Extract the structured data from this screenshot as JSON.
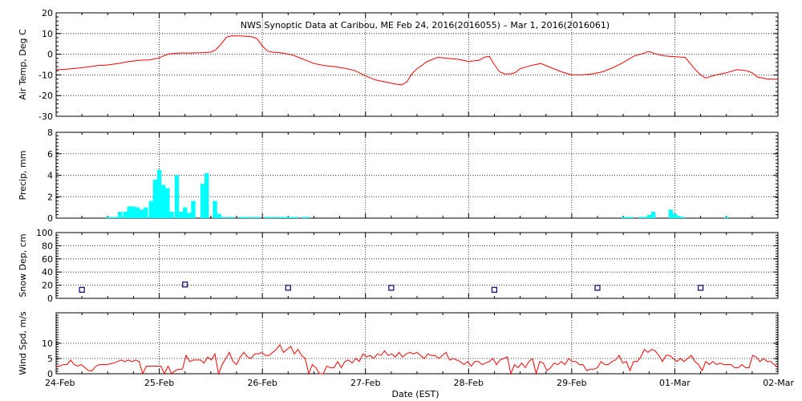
{
  "title": "NWS Synoptic Data at Caribou, ME   Feb 24, 2016(2016055) – Mar  1, 2016(2016061)",
  "x_axis": {
    "label": "Date (EST)",
    "tick_labels": [
      "24-Feb",
      "25-Feb",
      "26-Feb",
      "27-Feb",
      "28-Feb",
      "29-Feb",
      "01-Mar",
      "02-Mar"
    ]
  },
  "colors": {
    "air_temp": "#ff0000",
    "precip": "#00ffff",
    "snow_depth": "#000080",
    "wind_speed": "#ff0000",
    "grid": "#000000"
  },
  "chart_data": [
    {
      "type": "line",
      "name": "air_temp",
      "ylabel": "Air Temp, Deg C",
      "ylim": [
        -30,
        20
      ],
      "yticks": [
        -30,
        -20,
        -10,
        0,
        10,
        20
      ],
      "x_unit": "days since 24-Feb",
      "points": [
        [
          0,
          -7.5
        ],
        [
          0.1,
          -7.2
        ],
        [
          0.2,
          -6.8
        ],
        [
          0.3,
          -6.2
        ],
        [
          0.4,
          -5.5
        ],
        [
          0.5,
          -5.2
        ],
        [
          0.6,
          -4.5
        ],
        [
          0.7,
          -3.6
        ],
        [
          0.8,
          -3.0
        ],
        [
          0.9,
          -2.8
        ],
        [
          1.0,
          -1.8
        ],
        [
          1.05,
          -0.6
        ],
        [
          1.1,
          0.2
        ],
        [
          1.2,
          0.6
        ],
        [
          1.3,
          0.6
        ],
        [
          1.4,
          0.7
        ],
        [
          1.5,
          1.0
        ],
        [
          1.55,
          2.2
        ],
        [
          1.6,
          4.8
        ],
        [
          1.65,
          8.2
        ],
        [
          1.7,
          8.9
        ],
        [
          1.8,
          8.8
        ],
        [
          1.9,
          8.4
        ],
        [
          1.95,
          7.5
        ],
        [
          2.0,
          4.0
        ],
        [
          2.05,
          1.5
        ],
        [
          2.1,
          1.0
        ],
        [
          2.2,
          0.6
        ],
        [
          2.3,
          -0.5
        ],
        [
          2.4,
          -2.5
        ],
        [
          2.5,
          -4.5
        ],
        [
          2.6,
          -5.5
        ],
        [
          2.7,
          -6.0
        ],
        [
          2.8,
          -6.8
        ],
        [
          2.9,
          -8.0
        ],
        [
          3.0,
          -10.5
        ],
        [
          3.1,
          -12.5
        ],
        [
          3.2,
          -13.5
        ],
        [
          3.3,
          -14.5
        ],
        [
          3.35,
          -14.8
        ],
        [
          3.4,
          -13.5
        ],
        [
          3.45,
          -9.5
        ],
        [
          3.5,
          -7.0
        ],
        [
          3.6,
          -3.5
        ],
        [
          3.7,
          -1.5
        ],
        [
          3.8,
          -2.0
        ],
        [
          3.9,
          -2.5
        ],
        [
          4.0,
          -3.5
        ],
        [
          4.1,
          -3.0
        ],
        [
          4.15,
          -1.5
        ],
        [
          4.2,
          -1.0
        ],
        [
          4.25,
          -5.0
        ],
        [
          4.3,
          -8.5
        ],
        [
          4.35,
          -9.5
        ],
        [
          4.4,
          -9.5
        ],
        [
          4.45,
          -9.0
        ],
        [
          4.5,
          -7.0
        ],
        [
          4.6,
          -5.5
        ],
        [
          4.7,
          -4.5
        ],
        [
          4.8,
          -6.5
        ],
        [
          4.9,
          -8.5
        ],
        [
          5.0,
          -10.0
        ],
        [
          5.1,
          -10.0
        ],
        [
          5.2,
          -9.5
        ],
        [
          5.3,
          -8.5
        ],
        [
          5.4,
          -6.5
        ],
        [
          5.5,
          -4.0
        ],
        [
          5.6,
          -1.0
        ],
        [
          5.7,
          0.5
        ],
        [
          5.75,
          1.3
        ],
        [
          5.8,
          0.3
        ],
        [
          5.9,
          -0.8
        ],
        [
          6.0,
          -1.2
        ],
        [
          6.1,
          -1.5
        ],
        [
          6.15,
          -4.5
        ],
        [
          6.2,
          -7.5
        ],
        [
          6.25,
          -10.0
        ],
        [
          6.3,
          -11.5
        ],
        [
          6.4,
          -10.0
        ],
        [
          6.5,
          -9.0
        ],
        [
          6.6,
          -7.5
        ],
        [
          6.7,
          -8.0
        ],
        [
          6.75,
          -9.0
        ],
        [
          6.8,
          -11.0
        ],
        [
          6.9,
          -12.0
        ],
        [
          7.0,
          -12.0
        ]
      ]
    },
    {
      "type": "bar",
      "name": "precip",
      "ylabel": "Precip, mm",
      "ylim": [
        0,
        8
      ],
      "yticks": [
        0,
        2,
        4,
        6,
        8
      ],
      "bar_width_days": 0.042,
      "x": [
        0.5,
        0.54,
        0.58,
        0.62,
        0.67,
        0.71,
        0.75,
        0.79,
        0.83,
        0.87,
        0.92,
        0.96,
        1.0,
        1.04,
        1.08,
        1.12,
        1.17,
        1.21,
        1.25,
        1.29,
        1.33,
        1.42,
        1.46,
        1.54,
        1.58,
        1.62,
        1.67,
        1.71,
        1.79,
        1.83,
        1.87,
        1.92,
        1.96,
        2.04,
        2.08,
        2.12,
        2.17,
        2.21,
        2.25,
        2.29,
        2.33,
        2.4,
        2.44,
        5.5,
        5.54,
        5.58,
        5.67,
        5.71,
        5.75,
        5.79,
        5.96,
        6.0,
        6.04,
        6.08,
        6.5
      ],
      "values": [
        0.1,
        0.1,
        0.1,
        0.6,
        0.6,
        1.1,
        1.1,
        1.0,
        0.8,
        1.0,
        1.6,
        3.6,
        4.5,
        3.1,
        2.8,
        0.6,
        4.0,
        0.6,
        1.0,
        0.5,
        1.6,
        3.2,
        4.2,
        1.6,
        0.4,
        0.1,
        0.1,
        0.1,
        0.1,
        0.1,
        0.1,
        0.1,
        0.1,
        0.1,
        0.1,
        0.1,
        0.1,
        0.1,
        0.1,
        0.1,
        0.1,
        0.1,
        0.1,
        0.1,
        0.1,
        0.1,
        0.1,
        0.1,
        0.3,
        0.6,
        0.8,
        0.4,
        0.2,
        0.1,
        0.1
      ]
    },
    {
      "type": "scatter",
      "name": "snow_depth",
      "ylabel": "Snow Dep, cm",
      "ylim": [
        0,
        100
      ],
      "yticks": [
        0,
        20,
        40,
        60,
        80,
        100
      ],
      "x": [
        0.25,
        1.25,
        2.25,
        3.25,
        4.25,
        5.25,
        6.25
      ],
      "values": [
        13,
        21,
        16,
        16,
        13,
        16,
        16
      ]
    },
    {
      "type": "line",
      "name": "wind_speed",
      "ylabel": "Wind Spd, m/s",
      "ylim": [
        0,
        20
      ],
      "yticks": [
        0,
        5,
        10
      ],
      "x_unit": "days since 24-Feb",
      "points": [
        [
          0,
          2.5
        ],
        [
          0.05,
          2.5
        ],
        [
          0.1,
          3
        ],
        [
          0.15,
          3
        ],
        [
          0.2,
          4.5
        ],
        [
          0.25,
          3
        ],
        [
          0.3,
          2.5
        ],
        [
          0.35,
          3
        ],
        [
          0.4,
          2
        ],
        [
          0.45,
          1
        ],
        [
          0.5,
          1
        ],
        [
          0.55,
          2.5
        ],
        [
          0.6,
          3
        ],
        [
          0.7,
          3
        ],
        [
          0.8,
          3.5
        ],
        [
          0.9,
          4.5
        ],
        [
          0.95,
          4
        ],
        [
          1.0,
          4.5
        ],
        [
          1.05,
          4
        ],
        [
          1.1,
          4.5
        ],
        [
          1.15,
          4
        ],
        [
          1.2,
          0
        ],
        [
          1.25,
          2.5
        ],
        [
          1.3,
          2.5
        ],
        [
          1.35,
          2.5
        ],
        [
          1.4,
          2.5
        ],
        [
          1.45,
          2.5
        ],
        [
          1.5,
          0
        ],
        [
          1.55,
          2.5
        ],
        [
          1.6,
          0
        ],
        [
          1.65,
          1
        ],
        [
          1.7,
          1.5
        ],
        [
          1.75,
          1.5
        ],
        [
          1.8,
          6
        ],
        [
          1.85,
          4
        ],
        [
          1.9,
          4.5
        ],
        [
          2.0,
          4.5
        ],
        [
          2.05,
          3.5
        ],
        [
          2.1,
          5.5
        ],
        [
          2.15,
          4.5
        ],
        [
          2.2,
          6.5
        ],
        [
          2.25,
          0
        ],
        [
          2.3,
          3
        ],
        [
          2.35,
          5
        ],
        [
          2.4,
          7
        ],
        [
          2.45,
          4
        ],
        [
          2.5,
          3
        ],
        [
          2.55,
          5.5
        ],
        [
          2.6,
          7
        ],
        [
          2.65,
          5.5
        ],
        [
          2.7,
          5
        ],
        [
          2.75,
          6.5
        ],
        [
          2.8,
          6.5
        ],
        [
          2.85,
          7
        ],
        [
          2.9,
          6
        ],
        [
          2.95,
          6
        ],
        [
          3.0,
          7
        ],
        [
          3.05,
          8
        ],
        [
          3.1,
          9.5
        ],
        [
          3.15,
          7
        ],
        [
          3.2,
          8
        ],
        [
          3.25,
          9
        ],
        [
          3.3,
          6.5
        ],
        [
          3.35,
          8
        ],
        [
          3.4,
          6
        ],
        [
          3.45,
          5
        ],
        [
          3.5,
          0
        ],
        [
          3.55,
          3
        ],
        [
          3.6,
          2
        ],
        [
          3.65,
          0
        ],
        [
          3.7,
          0
        ],
        [
          3.75,
          2.5
        ],
        [
          3.8,
          2
        ],
        [
          3.85,
          2
        ],
        [
          3.9,
          4
        ],
        [
          3.95,
          2
        ],
        [
          4.0,
          4
        ],
        [
          4.05,
          4.5
        ],
        [
          4.1,
          3.5
        ],
        [
          4.15,
          5
        ],
        [
          4.2,
          4
        ],
        [
          4.25,
          6.5
        ],
        [
          4.3,
          5.5
        ],
        [
          4.35,
          6
        ],
        [
          4.4,
          5
        ],
        [
          4.45,
          6.5
        ],
        [
          4.5,
          6
        ],
        [
          4.55,
          7.5
        ],
        [
          4.6,
          6
        ],
        [
          4.65,
          6.5
        ],
        [
          4.7,
          5.5
        ],
        [
          4.75,
          7
        ],
        [
          4.8,
          5.5
        ],
        [
          4.85,
          6.5
        ],
        [
          4.9,
          7
        ],
        [
          4.95,
          6.5
        ],
        [
          5.0,
          7
        ],
        [
          5.05,
          6
        ],
        [
          5.1,
          5
        ],
        [
          5.15,
          6.5
        ],
        [
          5.2,
          6
        ],
        [
          5.25,
          6
        ],
        [
          5.3,
          5
        ],
        [
          5.35,
          6
        ],
        [
          5.4,
          7
        ],
        [
          5.45,
          4.5
        ],
        [
          5.5,
          5
        ],
        [
          5.55,
          4.5
        ],
        [
          5.6,
          4
        ],
        [
          5.65,
          3
        ],
        [
          5.7,
          4
        ],
        [
          5.75,
          2.5
        ],
        [
          5.8,
          4
        ],
        [
          5.85,
          4
        ],
        [
          5.9,
          3
        ],
        [
          5.95,
          3.5
        ],
        [
          6.0,
          4
        ],
        [
          6.05,
          5
        ],
        [
          6.1,
          3
        ],
        [
          6.15,
          4.5
        ],
        [
          6.2,
          5
        ],
        [
          6.25,
          5.5
        ],
        [
          6.3,
          0
        ],
        [
          6.35,
          3
        ],
        [
          6.4,
          2
        ],
        [
          6.45,
          3.5
        ],
        [
          6.5,
          2
        ],
        [
          6.55,
          4
        ],
        [
          6.6,
          5
        ],
        [
          6.65,
          0
        ],
        [
          6.7,
          4
        ],
        [
          6.75,
          3.5
        ],
        [
          6.8,
          1
        ],
        [
          6.85,
          2
        ],
        [
          6.9,
          3.5
        ],
        [
          6.95,
          3
        ],
        [
          7.0,
          4
        ],
        [
          7.05,
          3
        ],
        [
          7.1,
          5
        ],
        [
          7.15,
          4
        ],
        [
          7.2,
          4
        ],
        [
          7.25,
          3
        ],
        [
          7.3,
          3
        ],
        [
          7.35,
          1
        ],
        [
          7.4,
          1.5
        ],
        [
          7.45,
          1.5
        ],
        [
          7.5,
          2
        ],
        [
          7.55,
          4
        ],
        [
          7.6,
          3
        ],
        [
          7.65,
          3
        ],
        [
          7.7,
          4
        ],
        [
          7.75,
          4.5
        ],
        [
          7.8,
          6
        ],
        [
          7.85,
          3.5
        ],
        [
          7.9,
          4
        ],
        [
          7.95,
          1
        ],
        [
          8.0,
          4
        ],
        [
          8.05,
          4
        ],
        [
          8.1,
          5.5
        ],
        [
          8.15,
          8
        ],
        [
          8.2,
          7
        ],
        [
          8.25,
          8
        ],
        [
          8.3,
          7.5
        ],
        [
          8.35,
          6
        ],
        [
          8.4,
          4
        ],
        [
          8.45,
          6
        ],
        [
          8.5,
          6
        ],
        [
          8.55,
          5
        ],
        [
          8.6,
          4
        ],
        [
          8.65,
          5
        ],
        [
          8.7,
          4
        ],
        [
          8.75,
          5
        ],
        [
          8.8,
          6
        ],
        [
          8.85,
          4
        ],
        [
          8.9,
          3
        ],
        [
          8.95,
          1
        ],
        [
          9.0,
          4
        ],
        [
          9.05,
          3
        ],
        [
          9.1,
          4
        ],
        [
          9.15,
          3
        ],
        [
          9.2,
          3.5
        ],
        [
          9.25,
          3
        ],
        [
          9.3,
          3
        ],
        [
          9.35,
          3
        ],
        [
          9.4,
          2
        ],
        [
          9.45,
          2
        ],
        [
          9.5,
          3
        ],
        [
          9.55,
          2
        ],
        [
          9.6,
          2
        ],
        [
          9.65,
          6
        ],
        [
          9.7,
          5.5
        ],
        [
          9.75,
          4
        ],
        [
          9.8,
          5
        ],
        [
          9.85,
          4
        ],
        [
          9.9,
          4
        ],
        [
          9.95,
          3
        ],
        [
          10.0,
          2
        ]
      ]
    }
  ]
}
